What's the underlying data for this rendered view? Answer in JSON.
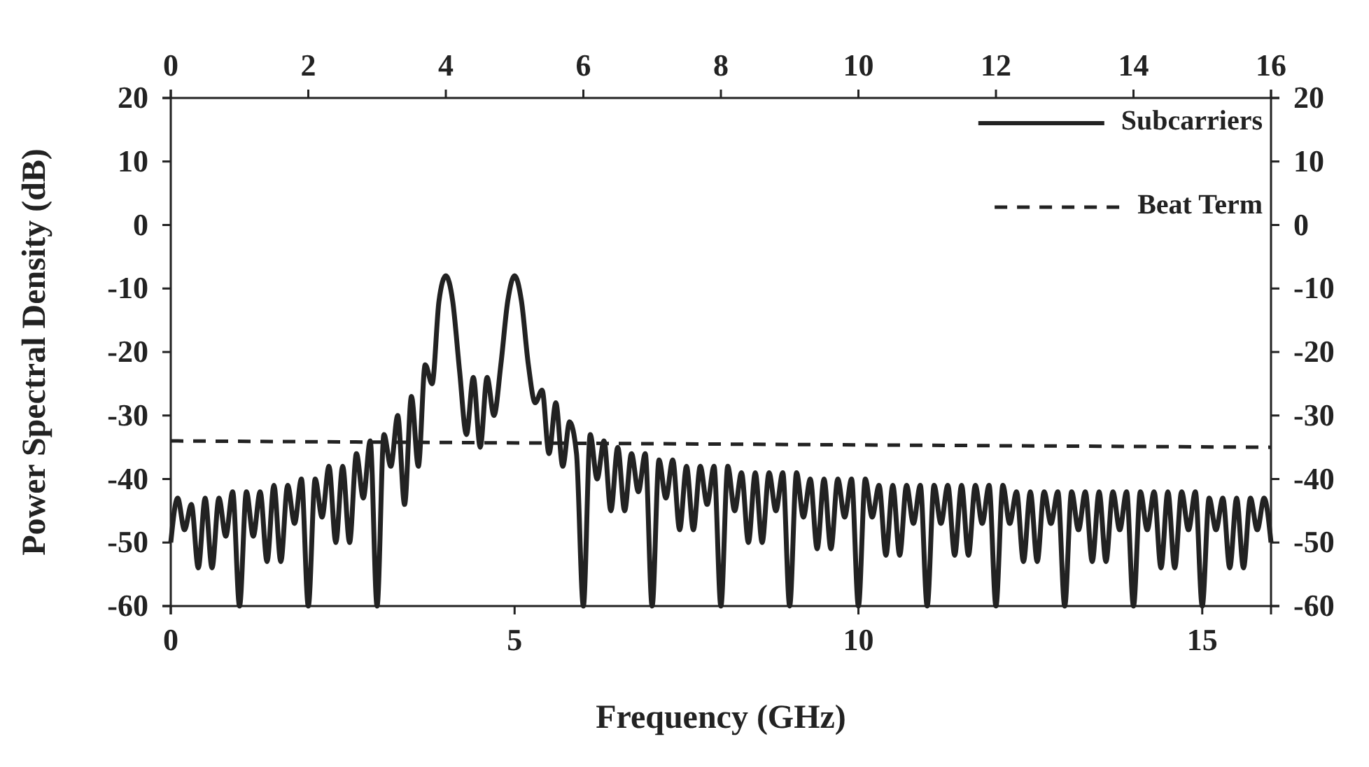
{
  "chart_data": {
    "type": "line",
    "xlabel": "Frequency (GHz)",
    "ylabel": "Power Spectral Density (dB)",
    "xlim": [
      0,
      16
    ],
    "xticks": [
      0,
      5,
      10,
      15
    ],
    "x2lim": [
      0,
      16
    ],
    "x2ticks": [
      0,
      2,
      4,
      6,
      8,
      10,
      12,
      14,
      16
    ],
    "ylim": [
      -60,
      20
    ],
    "yticks": [
      -60,
      -50,
      -40,
      -30,
      -20,
      -10,
      0,
      10,
      20
    ],
    "y2lim": [
      -60,
      20
    ],
    "y2ticks": [
      -60,
      -50,
      -40,
      -30,
      -20,
      -10,
      0,
      10,
      20
    ],
    "grid": false,
    "legend": "top right",
    "marker": "none",
    "series": [
      {
        "name": "Subcarriers",
        "color": "#222222",
        "line_style": "solid",
        "x": [
          0,
          0.1,
          0.2,
          0.3,
          0.4,
          0.5,
          0.6,
          0.7,
          0.8,
          0.9,
          1,
          1.1,
          1.2,
          1.3,
          1.4,
          1.5,
          1.6,
          1.7,
          1.8,
          1.9,
          2,
          2.1,
          2.2,
          2.3,
          2.4,
          2.5,
          2.6,
          2.7,
          2.8,
          2.9,
          3,
          3.1,
          3.2,
          3.3,
          3.4,
          3.5,
          3.6,
          3.7,
          3.8,
          3.9,
          4,
          4.1,
          4.2,
          4.3,
          4.4,
          4.5,
          4.6,
          4.7,
          4.8,
          4.9,
          5,
          5.1,
          5.2,
          5.3,
          5.4,
          5.5,
          5.6,
          5.7,
          5.8,
          5.9,
          6,
          6.1,
          6.2,
          6.3,
          6.4,
          6.5,
          6.6,
          6.7,
          6.8,
          6.9,
          7,
          7.1,
          7.2,
          7.3,
          7.4,
          7.5,
          7.6,
          7.7,
          7.8,
          7.9,
          8,
          8.1,
          8.2,
          8.3,
          8.4,
          8.5,
          8.6,
          8.7,
          8.8,
          8.9,
          9,
          9.1,
          9.2,
          9.3,
          9.4,
          9.5,
          9.6,
          9.7,
          9.8,
          9.9,
          10,
          10.1,
          10.2,
          10.3,
          10.4,
          10.5,
          10.6,
          10.7,
          10.8,
          10.9,
          11,
          11.1,
          11.2,
          11.3,
          11.4,
          11.5,
          11.6,
          11.7,
          11.8,
          11.9,
          12,
          12.1,
          12.2,
          12.3,
          12.4,
          12.5,
          12.6,
          12.7,
          12.8,
          12.9,
          13,
          13.1,
          13.2,
          13.3,
          13.4,
          13.5,
          13.6,
          13.7,
          13.8,
          13.9,
          14,
          14.1,
          14.2,
          14.3,
          14.4,
          14.5,
          14.6,
          14.7,
          14.8,
          14.9,
          15,
          15.1,
          15.2,
          15.3,
          15.4,
          15.5,
          15.6,
          15.7,
          15.8,
          15.9,
          16
        ],
        "values": [
          -50,
          -43,
          -48,
          -44,
          -54,
          -43,
          -54,
          -43,
          -49,
          -42,
          -60,
          -42,
          -49,
          -42,
          -53,
          -41,
          -53,
          -41,
          -47,
          -40,
          -60,
          -40,
          -46,
          -38,
          -50,
          -38,
          -50,
          -36,
          -43,
          -34,
          -60,
          -33,
          -38,
          -30,
          -44,
          -27,
          -38,
          -22,
          -25,
          -12,
          -8,
          -12,
          -23,
          -33,
          -24,
          -35,
          -24,
          -30,
          -22,
          -12,
          -8,
          -12,
          -22,
          -28,
          -26,
          -36,
          -28,
          -38,
          -31,
          -36,
          -60,
          -33,
          -40,
          -34,
          -45,
          -35,
          -45,
          -36,
          -42,
          -36,
          -60,
          -37,
          -43,
          -37,
          -48,
          -38,
          -48,
          -38,
          -44,
          -38,
          -60,
          -38,
          -45,
          -39,
          -50,
          -39,
          -50,
          -39,
          -45,
          -39,
          -60,
          -39,
          -46,
          -40,
          -51,
          -40,
          -51,
          -40,
          -46,
          -40,
          -60,
          -40,
          -46,
          -41,
          -52,
          -41,
          -52,
          -41,
          -47,
          -41,
          -60,
          -41,
          -47,
          -41,
          -52,
          -41,
          -52,
          -41,
          -47,
          -41,
          -60,
          -41,
          -47,
          -42,
          -53,
          -42,
          -53,
          -42,
          -47,
          -42,
          -60,
          -42,
          -48,
          -42,
          -53,
          -42,
          -53,
          -42,
          -48,
          -42,
          -60,
          -42,
          -48,
          -42,
          -54,
          -42,
          -54,
          -42,
          -48,
          -42,
          -60,
          -43,
          -48,
          -43,
          -54,
          -43,
          -54,
          -43,
          -48,
          -43,
          -50
        ]
      },
      {
        "name": "Beat Term",
        "color": "#222222",
        "line_style": "dashed",
        "x": [
          0,
          16
        ],
        "values": [
          -34,
          -35
        ]
      }
    ]
  }
}
